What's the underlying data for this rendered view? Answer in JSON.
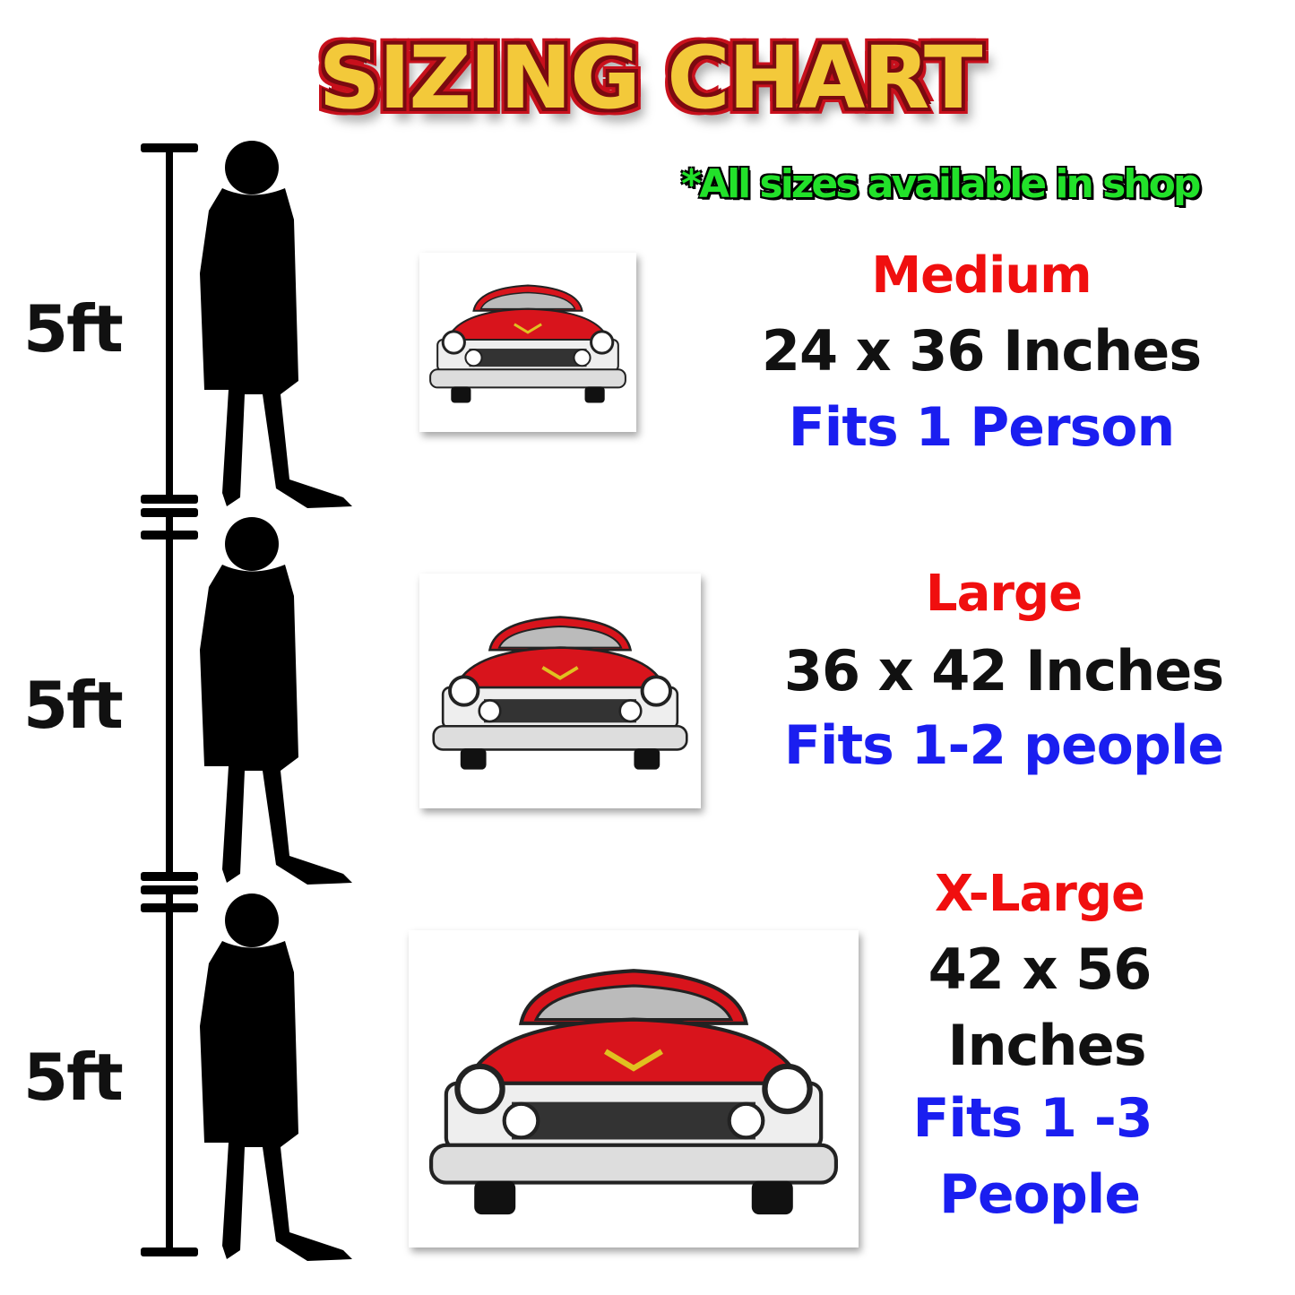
{
  "title": "SIZING CHART",
  "note": "*All sizes available in shop",
  "height_labels": [
    "5ft",
    "5ft",
    "5ft"
  ],
  "sizes": [
    {
      "name": "Medium",
      "dimensions": "24 x 36 Inches",
      "fits": "Fits 1 Person"
    },
    {
      "name": "Large",
      "dimensions": "36 x 42 Inches",
      "fits": "Fits 1-2 people"
    },
    {
      "name": "X-Large",
      "dimensions_line1": "42 x 56",
      "dimensions_line2": "Inches",
      "fits_line1": "Fits 1 -3",
      "fits_line2": "People"
    }
  ],
  "colors": {
    "size_name": "#f00f0f",
    "fits": "#1a1ef0",
    "note": "#22e12a",
    "title": "#f3c93a",
    "car": "#d8141c"
  }
}
